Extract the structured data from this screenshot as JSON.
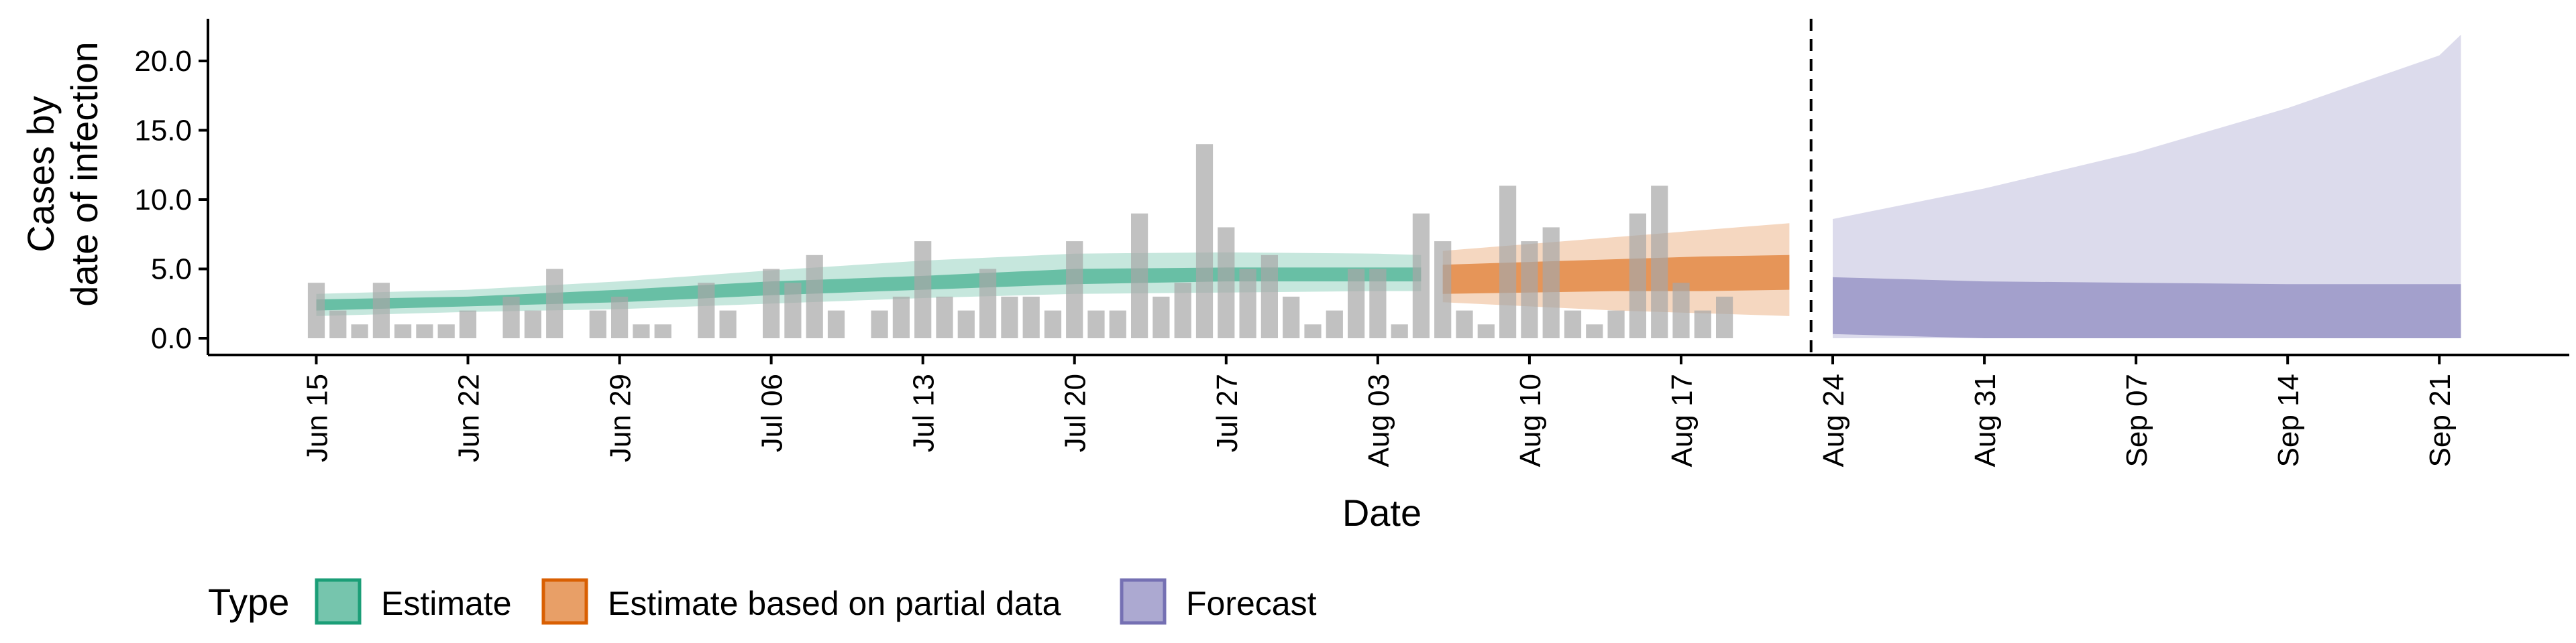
{
  "chart_data": {
    "type": "bar+area",
    "xlabel": "Date",
    "ylabel_lines": [
      "Cases by",
      "date of infection"
    ],
    "ylim": [
      0,
      23
    ],
    "y_ticks": [
      0,
      5,
      10,
      15,
      20
    ],
    "y_tick_labels": [
      "0.0",
      "5.0",
      "10.0",
      "15.0",
      "20.0"
    ],
    "x_range": [
      "2020-06-10",
      "2020-09-27"
    ],
    "x_ticks": [
      "2020-06-15",
      "2020-06-22",
      "2020-06-29",
      "2020-07-06",
      "2020-07-13",
      "2020-07-20",
      "2020-07-27",
      "2020-08-03",
      "2020-08-10",
      "2020-08-17",
      "2020-08-24",
      "2020-08-31",
      "2020-09-07",
      "2020-09-14",
      "2020-09-21"
    ],
    "x_tick_labels": [
      "Jun 15",
      "Jun 22",
      "Jun 29",
      "Jul 06",
      "Jul 13",
      "Jul 20",
      "Jul 27",
      "Aug 03",
      "Aug 10",
      "Aug 17",
      "Aug 24",
      "Aug 31",
      "Sep 07",
      "Sep 14",
      "Sep 21"
    ],
    "forecast_cutoff_date": "2020-08-23",
    "grid": false,
    "legend": {
      "title": "Type",
      "position": "bottom",
      "items": [
        {
          "label": "Estimate",
          "color": "#1b9e77"
        },
        {
          "label": "Estimate based on partial data",
          "color": "#d95f02"
        },
        {
          "label": "Forecast",
          "color": "#7570b3"
        }
      ]
    },
    "bars": {
      "color": "#a6a6a6",
      "start_date": "2020-06-15",
      "values": [
        4,
        2,
        1,
        4,
        1,
        1,
        1,
        2,
        0,
        3,
        2,
        5,
        0,
        2,
        3,
        1,
        1,
        0,
        4,
        2,
        0,
        5,
        4,
        6,
        2,
        0,
        2,
        3,
        7,
        3,
        2,
        5,
        3,
        3,
        2,
        7,
        2,
        2,
        9,
        3,
        4,
        14,
        8,
        5,
        6,
        3,
        1,
        2,
        5,
        5,
        1,
        9,
        7,
        2,
        1,
        11,
        7,
        8,
        2,
        1,
        2,
        9,
        11,
        4,
        2,
        3
      ]
    },
    "series": [
      {
        "name": "Estimate",
        "color": "#1b9e77",
        "x": [
          "2020-06-15",
          "2020-06-22",
          "2020-06-29",
          "2020-07-06",
          "2020-07-13",
          "2020-07-20",
          "2020-07-27",
          "2020-08-03",
          "2020-08-05"
        ],
        "median": [
          2.4,
          2.6,
          3.0,
          3.6,
          4.0,
          4.4,
          4.6,
          4.6,
          4.6
        ],
        "lower_50": [
          2.0,
          2.3,
          2.6,
          3.1,
          3.5,
          3.9,
          4.1,
          4.1,
          4.1
        ],
        "upper_50": [
          2.8,
          3.0,
          3.5,
          4.1,
          4.5,
          5.0,
          5.1,
          5.1,
          5.1
        ],
        "lower_90": [
          1.6,
          1.9,
          2.1,
          2.5,
          2.9,
          3.2,
          3.3,
          3.4,
          3.4
        ],
        "upper_90": [
          3.2,
          3.5,
          4.1,
          4.9,
          5.6,
          6.1,
          6.2,
          6.1,
          6.0
        ]
      },
      {
        "name": "Estimate based on partial data",
        "color": "#d95f02",
        "x": [
          "2020-08-06",
          "2020-08-10",
          "2020-08-14",
          "2020-08-18",
          "2020-08-22"
        ],
        "median": [
          4.6,
          4.7,
          4.8,
          5.0,
          5.1
        ],
        "lower_50": [
          3.2,
          3.3,
          3.4,
          3.4,
          3.5
        ],
        "upper_50": [
          5.3,
          5.5,
          5.7,
          5.9,
          6.0
        ],
        "lower_90": [
          2.6,
          2.3,
          2.0,
          1.8,
          1.6
        ],
        "upper_90": [
          6.3,
          6.8,
          7.3,
          7.8,
          8.3
        ]
      },
      {
        "name": "Forecast",
        "color": "#7570b3",
        "x": [
          "2020-08-24",
          "2020-08-31",
          "2020-09-07",
          "2020-09-14",
          "2020-09-21",
          "2020-09-22"
        ],
        "lower_50": [
          0.3,
          0.0,
          0.0,
          0.0,
          0.0,
          0.0
        ],
        "upper_50": [
          4.4,
          4.1,
          4.0,
          3.9,
          3.9,
          3.9
        ],
        "lower_90": [
          0.0,
          0.0,
          0.0,
          0.0,
          0.0,
          0.0
        ],
        "upper_90": [
          8.6,
          10.8,
          13.4,
          16.6,
          20.4,
          21.9
        ]
      }
    ]
  }
}
